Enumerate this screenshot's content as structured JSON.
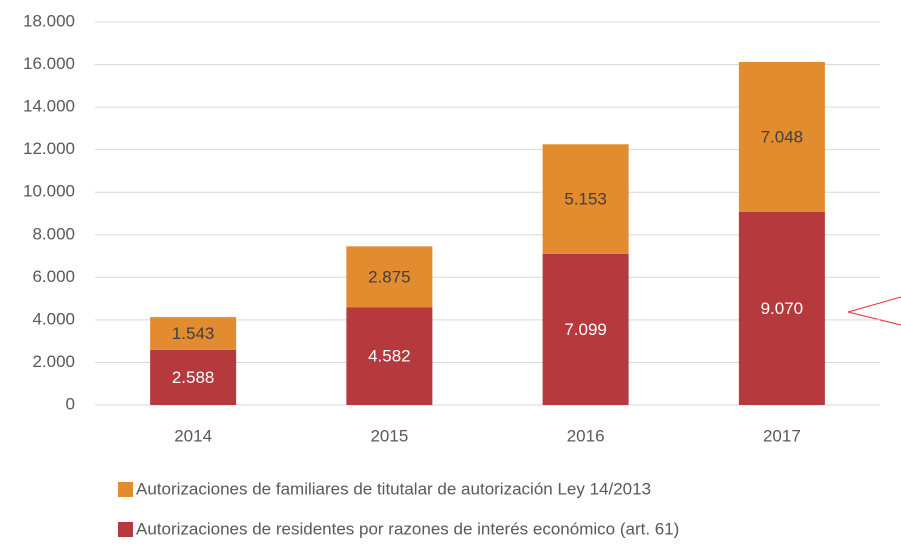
{
  "chart_data": {
    "type": "stacked_bar",
    "categories": [
      "2014",
      "2015",
      "2016",
      "2017"
    ],
    "series": [
      {
        "name": "Autorizaciones de residentes por razones de interés económico (art. 61)",
        "color": "#b5393d",
        "values": [
          2588,
          4582,
          7099,
          9070
        ],
        "value_labels": [
          "2.588",
          "4.582",
          "7.099",
          "9.070"
        ]
      },
      {
        "name": "Autorizaciones de familiares de titutalar de autorización Ley 14/2013",
        "color": "#e38b2f",
        "values": [
          1543,
          2875,
          5153,
          7048
        ],
        "value_labels": [
          "1.543",
          "2.875",
          "5.153",
          "7.048"
        ]
      }
    ],
    "ylim": [
      0,
      18000
    ],
    "yticks": [
      {
        "value": 0,
        "label": "0"
      },
      {
        "value": 2000,
        "label": "2.000"
      },
      {
        "value": 4000,
        "label": "4.000"
      },
      {
        "value": 6000,
        "label": "6.000"
      },
      {
        "value": 8000,
        "label": "8.000"
      },
      {
        "value": 10000,
        "label": "10.000"
      },
      {
        "value": 12000,
        "label": "12.000"
      },
      {
        "value": 14000,
        "label": "14.000"
      },
      {
        "value": 16000,
        "label": "16.000"
      },
      {
        "value": 18000,
        "label": "18.000"
      }
    ],
    "grid": true
  }
}
